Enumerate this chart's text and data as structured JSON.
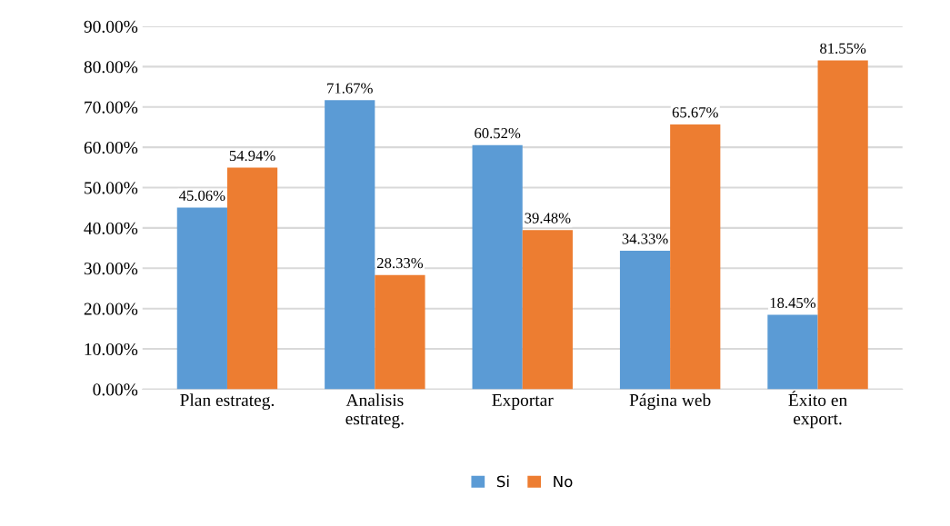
{
  "chart_data": {
    "type": "bar",
    "categories": [
      "Plan estrateg.",
      "Analisis\nestrateg.",
      "Exportar",
      "Página web",
      "Éxito en\nexport."
    ],
    "series": [
      {
        "name": "Si",
        "color": "#5b9bd5",
        "values": [
          45.06,
          71.67,
          60.52,
          34.33,
          18.45
        ],
        "value_labels": [
          "45.06%",
          "71.67%",
          "60.52%",
          "34.33%",
          "18.45%"
        ]
      },
      {
        "name": "No",
        "color": "#ed7d31",
        "values": [
          54.94,
          28.33,
          39.48,
          65.67,
          81.55
        ],
        "value_labels": [
          "54.94%",
          "28.33%",
          "39.48%",
          "65.67%",
          "81.55%"
        ]
      }
    ],
    "ylim": [
      0,
      90
    ],
    "yticks": [
      {
        "value": 0,
        "label": "0.00%"
      },
      {
        "value": 10,
        "label": "10.00%"
      },
      {
        "value": 20,
        "label": "20.00%"
      },
      {
        "value": 30,
        "label": "30.00%"
      },
      {
        "value": 40,
        "label": "40.00%"
      },
      {
        "value": 50,
        "label": "50.00%"
      },
      {
        "value": 60,
        "label": "60.00%"
      },
      {
        "value": 70,
        "label": "70.00%"
      },
      {
        "value": 80,
        "label": "80.00%"
      },
      {
        "value": 90,
        "label": "90.00%"
      }
    ],
    "grid": "y",
    "legend": "bottom"
  }
}
